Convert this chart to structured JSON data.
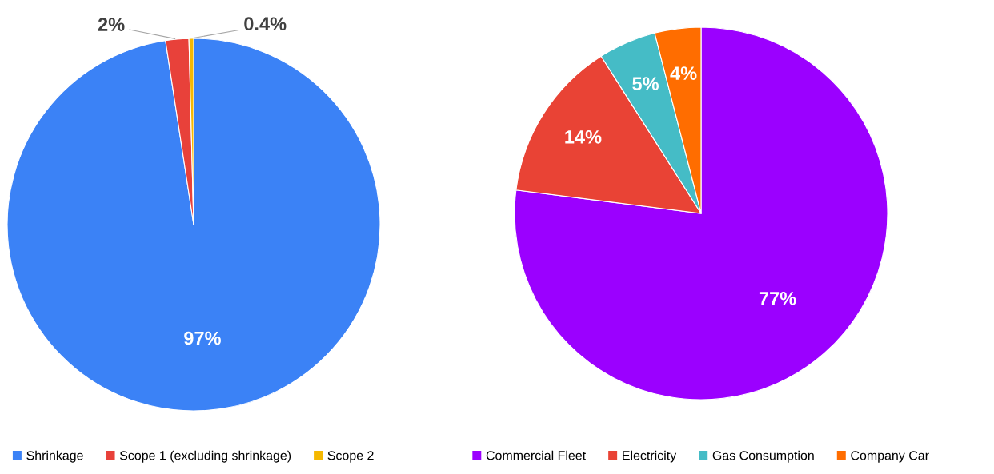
{
  "chart_data": [
    {
      "type": "pie",
      "categories": [
        "Shrinkage",
        "Scope 1 (excluding shrinkage)",
        "Scope 2"
      ],
      "values": [
        97,
        2,
        0.4
      ],
      "colors": [
        "#3b82f6",
        "#e8413a",
        "#f5b800"
      ],
      "value_labels": [
        "97%",
        "2%",
        "0.4%"
      ],
      "legend": "bottom"
    },
    {
      "type": "pie",
      "categories": [
        "Commercial Fleet",
        "Electricity",
        "Gas Consumption",
        "Company Car"
      ],
      "values": [
        77,
        14,
        5,
        4
      ],
      "colors": [
        "#9b00ff",
        "#e94335",
        "#45bcc6",
        "#ff6d00"
      ],
      "value_labels": [
        "77%",
        "14%",
        "5%",
        "4%"
      ],
      "legend": "bottom"
    }
  ]
}
